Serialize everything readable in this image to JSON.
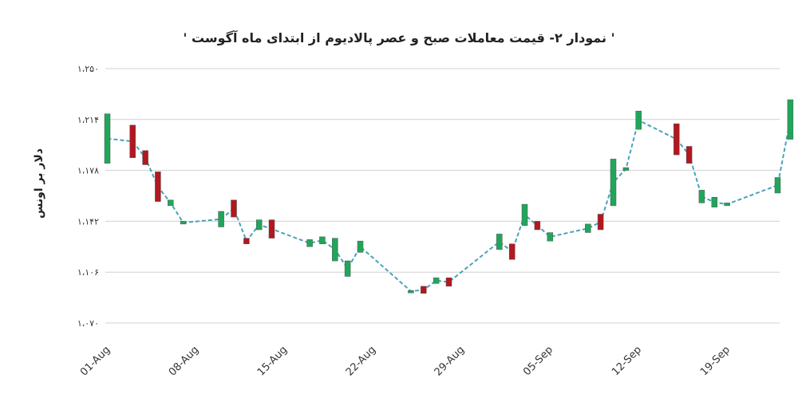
{
  "chart_data": {
    "type": "candlestick",
    "title": "' نمودار ۲- قیمت معاملات صبح و عصر پالادیوم از ابتدای ماه آگوست '",
    "ylabel": "دلار بر اونس",
    "xlabel": "",
    "y_ticks": [
      "۱،۲۵۰",
      "۱،۲۱۴",
      "۱،۱۷۸",
      "۱،۱۴۲",
      "۱،۱۰۶",
      "۱،۰۷۰"
    ],
    "ylim": [
      1070,
      1250
    ],
    "x_ticks": [
      "01-Aug",
      "08-Aug",
      "15-Aug",
      "22-Aug",
      "29-Aug",
      "05-Sep",
      "12-Sep",
      "19-Sep"
    ],
    "grid": true,
    "colors": {
      "up": "#20a65a",
      "down": "#b3171f",
      "line": "#4aa3b8",
      "grid": "#d0d0d0"
    },
    "series": [
      {
        "date": "01-Aug",
        "open": 1183,
        "close": 1218
      },
      {
        "date": "03-Aug",
        "open": 1210,
        "close": 1187
      },
      {
        "date": "04-Aug",
        "open": 1192,
        "close": 1182
      },
      {
        "date": "05-Aug",
        "open": 1177,
        "close": 1156
      },
      {
        "date": "06-Aug",
        "open": 1153,
        "close": 1157
      },
      {
        "date": "07-Aug",
        "open": 1140,
        "close": 1142
      },
      {
        "date": "10-Aug",
        "open": 1138,
        "close": 1149
      },
      {
        "date": "11-Aug",
        "open": 1157,
        "close": 1145
      },
      {
        "date": "12-Aug",
        "open": 1130,
        "close": 1126
      },
      {
        "date": "13-Aug",
        "open": 1136,
        "close": 1143
      },
      {
        "date": "14-Aug",
        "open": 1143,
        "close": 1130
      },
      {
        "date": "17-Aug",
        "open": 1124,
        "close": 1129
      },
      {
        "date": "18-Aug",
        "open": 1126,
        "close": 1131
      },
      {
        "date": "19-Aug",
        "open": 1114,
        "close": 1130
      },
      {
        "date": "20-Aug",
        "open": 1103,
        "close": 1114
      },
      {
        "date": "21-Aug",
        "open": 1120,
        "close": 1128
      },
      {
        "date": "25-Aug",
        "open": 1092,
        "close": 1093
      },
      {
        "date": "26-Aug",
        "open": 1096,
        "close": 1091
      },
      {
        "date": "27-Aug",
        "open": 1098,
        "close": 1102
      },
      {
        "date": "28-Aug",
        "open": 1102,
        "close": 1096
      },
      {
        "date": "01-Sep",
        "open": 1122,
        "close": 1133
      },
      {
        "date": "02-Sep",
        "open": 1126,
        "close": 1115
      },
      {
        "date": "03-Sep",
        "open": 1139,
        "close": 1154
      },
      {
        "date": "04-Sep",
        "open": 1142,
        "close": 1136
      },
      {
        "date": "05-Sep",
        "open": 1128,
        "close": 1134
      },
      {
        "date": "08-Sep",
        "open": 1134,
        "close": 1140
      },
      {
        "date": "09-Sep",
        "open": 1147,
        "close": 1136
      },
      {
        "date": "10-Sep",
        "open": 1153,
        "close": 1186
      },
      {
        "date": "11-Sep",
        "open": 1178,
        "close": 1180
      },
      {
        "date": "12-Sep",
        "open": 1207,
        "close": 1220
      },
      {
        "date": "15-Sep",
        "open": 1211,
        "close": 1189
      },
      {
        "date": "16-Sep",
        "open": 1195,
        "close": 1183
      },
      {
        "date": "17-Sep",
        "open": 1155,
        "close": 1164
      },
      {
        "date": "18-Sep",
        "open": 1152,
        "close": 1159
      },
      {
        "date": "19-Sep",
        "open": 1153,
        "close": 1155
      },
      {
        "date": "23-Sep",
        "open": 1162,
        "close": 1173
      },
      {
        "date": "24-Sep",
        "open": 1200,
        "close": 1228
      }
    ]
  }
}
